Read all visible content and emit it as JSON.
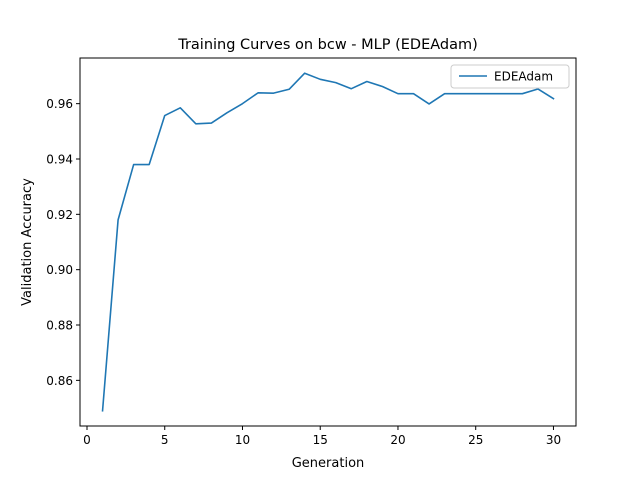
{
  "chart_data": {
    "type": "line",
    "title": "Training Curves on bcw - MLP (EDEAdam)",
    "xlabel": "Generation",
    "ylabel": "Validation Accuracy",
    "xlim": [
      -0.45,
      31.45
    ],
    "ylim": [
      0.8435,
      0.9765
    ],
    "x_ticks": [
      0,
      5,
      10,
      15,
      20,
      25,
      30
    ],
    "y_ticks": [
      0.86,
      0.88,
      0.9,
      0.92,
      0.94,
      0.96
    ],
    "y_tick_labels": [
      "0.86",
      "0.88",
      "0.90",
      "0.92",
      "0.94",
      "0.96"
    ],
    "grid": false,
    "legend_position": "top-right",
    "series": [
      {
        "name": "EDEAdam",
        "color": "#1f77b4",
        "x": [
          1,
          2,
          3,
          4,
          5,
          6,
          7,
          8,
          9,
          10,
          11,
          12,
          13,
          14,
          15,
          16,
          17,
          18,
          19,
          20,
          21,
          22,
          23,
          24,
          25,
          26,
          27,
          28,
          29,
          30
        ],
        "y": [
          0.849,
          0.918,
          0.938,
          0.938,
          0.9557,
          0.9585,
          0.9527,
          0.953,
          0.9567,
          0.96,
          0.9639,
          0.9638,
          0.9652,
          0.971,
          0.9688,
          0.9676,
          0.9654,
          0.968,
          0.9662,
          0.9636,
          0.9636,
          0.9599,
          0.9636,
          0.9636,
          0.9636,
          0.9636,
          0.9636,
          0.9636,
          0.9653,
          0.9618
        ]
      }
    ]
  }
}
